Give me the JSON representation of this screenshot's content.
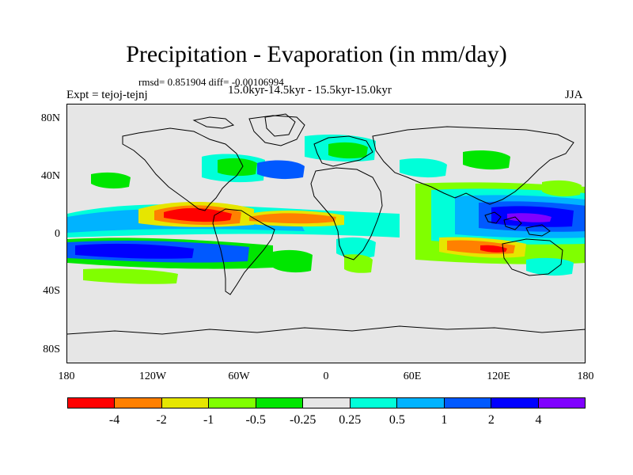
{
  "title": "Precipitation - Evaporation (in mm/day)",
  "stats": "rmsd= 0.851904 diff= -0.00106994",
  "periods": "15.0kyr-14.5kyr - 15.5kyr-15.0kyr",
  "expt": "Expt = tejoj-tejnj",
  "season": "JJA",
  "y_ticks": [
    "80N",
    "40N",
    "0",
    "40S",
    "80S"
  ],
  "x_ticks": [
    "180",
    "120W",
    "60W",
    "0",
    "60E",
    "120E",
    "180"
  ],
  "colorbar": {
    "labels": [
      "-4",
      "-2",
      "-1",
      "-0.5",
      "-0.25",
      "0.25",
      "0.5",
      "1",
      "2",
      "4"
    ],
    "colors": [
      "#ff0000",
      "#ff8000",
      "#e6e600",
      "#80ff00",
      "#00e600",
      "#e6e6e6",
      "#00ffd9",
      "#00b3ff",
      "#0059ff",
      "#0000ff",
      "#8000ff"
    ]
  }
}
